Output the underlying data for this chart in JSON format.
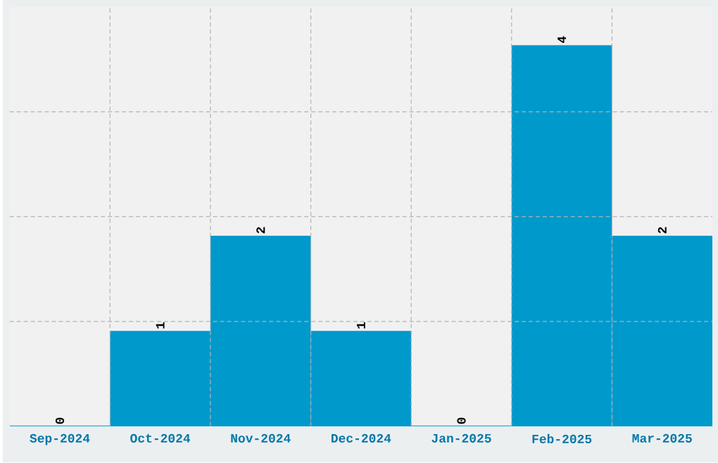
{
  "chart_data": {
    "type": "bar",
    "categories": [
      "Sep-2024",
      "Oct-2024",
      "Nov-2024",
      "Dec-2024",
      "Jan-2025",
      "Feb-2025",
      "Mar-2025"
    ],
    "values": [
      0,
      1,
      2,
      1,
      0,
      4,
      2
    ],
    "color": "#0099cc",
    "ylim": [
      0,
      4.4
    ],
    "yticks": [
      {
        "value": 1.1,
        "label": null
      },
      {
        "value": 2.2,
        "label": null
      },
      {
        "value": 3.3,
        "label": null
      }
    ],
    "tick_labels": "x",
    "grid": true,
    "data_labels": true
  }
}
